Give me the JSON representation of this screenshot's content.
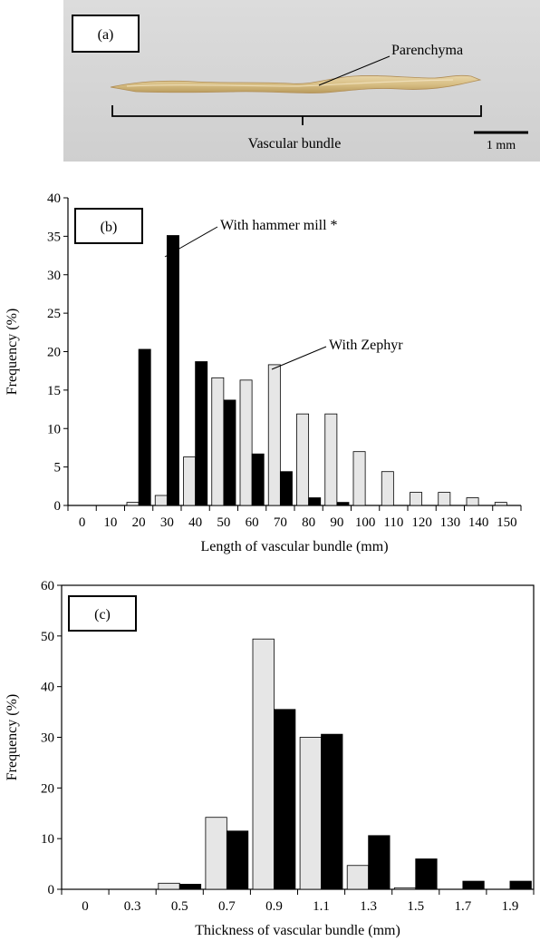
{
  "panel_a": {
    "label": "(a)",
    "annotation": "Parenchyma",
    "bracket_label": "Vascular bundle",
    "scale_label": "1 mm"
  },
  "chart_data": [
    {
      "type": "bar",
      "label": "(b)",
      "xlabel": "Length of vascular bundle (mm)",
      "ylabel": "Frequency (%)",
      "ylim": [
        0,
        40
      ],
      "yticks": [
        0,
        5,
        10,
        15,
        20,
        25,
        30,
        35,
        40
      ],
      "tick_labels": [
        "0",
        "10",
        "20",
        "30",
        "40",
        "50",
        "60",
        "70",
        "80",
        "90",
        "100",
        "110",
        "120",
        "130",
        "140",
        "150"
      ],
      "categories": [
        "0",
        "10",
        "20",
        "30",
        "40",
        "50",
        "60",
        "70",
        "80",
        "90",
        "100",
        "110",
        "120",
        "130",
        "140",
        "150"
      ],
      "series": [
        {
          "name": "With Zephyr",
          "color": "#e6e6e6",
          "values": [
            0,
            0,
            0.4,
            1.3,
            6.3,
            16.6,
            16.3,
            18.3,
            11.9,
            11.9,
            7.0,
            4.4,
            1.7,
            1.7,
            1.0,
            0.4
          ]
        },
        {
          "name": "With hammer mill *",
          "color": "#000000",
          "values": [
            0,
            0,
            20.3,
            35.1,
            18.7,
            13.7,
            6.7,
            4.4,
            1.0,
            0.4,
            0,
            0,
            0,
            0,
            0,
            0
          ]
        }
      ],
      "annotations": [
        "With hammer mill *",
        "With Zephyr"
      ]
    },
    {
      "type": "bar",
      "label": "(c)",
      "xlabel": "Thickness of vascular bundle (mm)",
      "ylabel": "Frequency (%)",
      "ylim": [
        0,
        60
      ],
      "yticks": [
        0,
        10,
        20,
        30,
        40,
        50,
        60
      ],
      "tick_labels": [
        "0",
        "0.3",
        "0.5",
        "0.7",
        "0.9",
        "1.1",
        "1.3",
        "1.5",
        "1.7",
        "1.9"
      ],
      "categories": [
        "0",
        "0.3",
        "0.5",
        "0.7",
        "0.9",
        "1.1",
        "1.3",
        "1.5",
        "1.7",
        "1.9"
      ],
      "series": [
        {
          "name": "With Zephyr",
          "color": "#e6e6e6",
          "values": [
            0,
            0,
            1.2,
            14.2,
            49.4,
            30.0,
            4.7,
            0.3,
            0,
            0
          ]
        },
        {
          "name": "With hammer mill *",
          "color": "#000000",
          "values": [
            0,
            0,
            1.0,
            11.5,
            35.5,
            30.6,
            10.6,
            6.0,
            1.6,
            1.6
          ]
        }
      ]
    }
  ]
}
